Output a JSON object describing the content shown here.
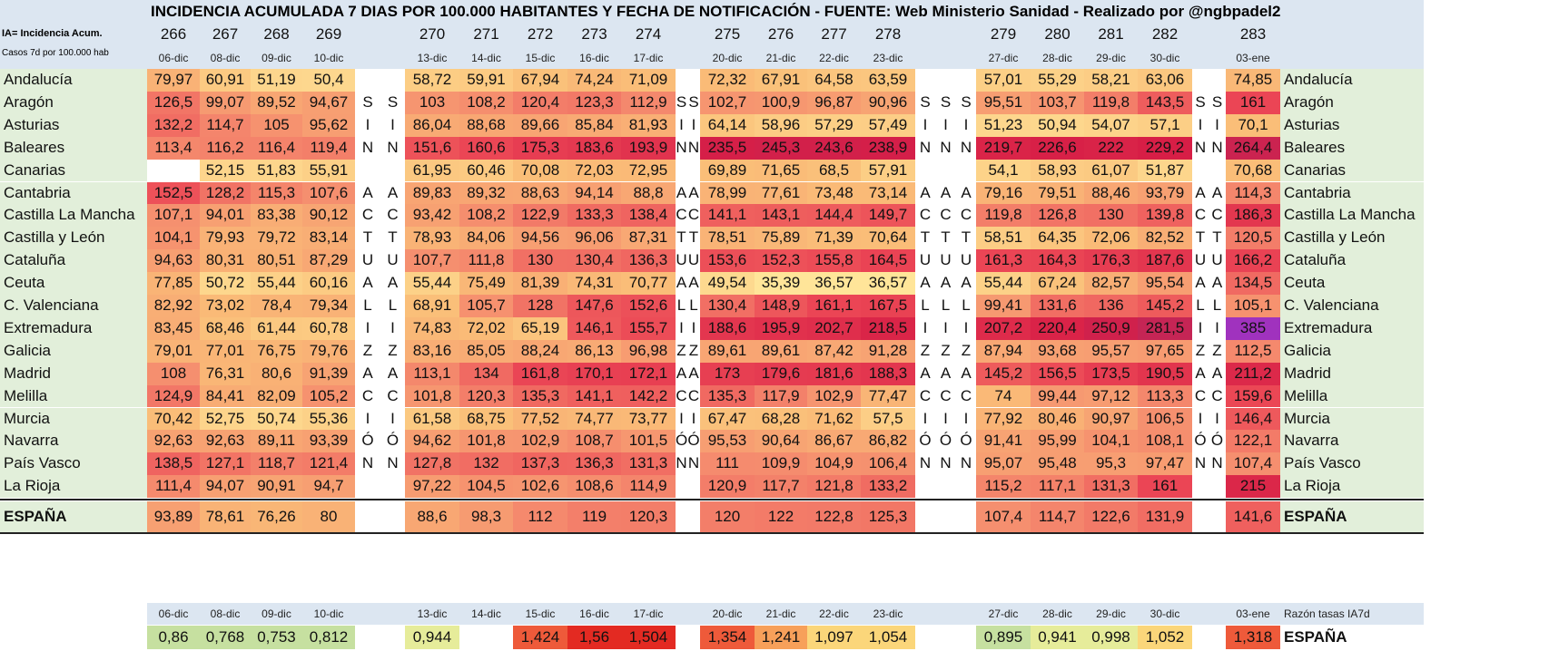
{
  "title": "INCIDENCIA ACUMULADA 7 DIAS POR 100.000 HABITANTES Y FECHA DE NOTIFICACIÓN - FUENTE: Web Ministerio Sanidad - Realizado por @ngbpadel2",
  "legend": {
    "line1": "IA= Incidencia Acum.",
    "line2": "Casos 7d  por 100.000 hab"
  },
  "day_numbers": [
    "266",
    "267",
    "268",
    "269",
    "270",
    "271",
    "272",
    "273",
    "274",
    "275",
    "276",
    "277",
    "278",
    "279",
    "280",
    "281",
    "282",
    "283"
  ],
  "dates": [
    "06-dic",
    "08-dic",
    "09-dic",
    "10-dic",
    "13-dic",
    "14-dic",
    "15-dic",
    "16-dic",
    "17-dic",
    "20-dic",
    "21-dic",
    "22-dic",
    "23-dic",
    "27-dic",
    "28-dic",
    "29-dic",
    "30-dic",
    "03-ene"
  ],
  "weekend_columns": [
    {
      "after": 4,
      "count": 2
    },
    {
      "after": 9,
      "count": 2
    },
    {
      "after": 13,
      "count": 3
    },
    {
      "after": 17,
      "count": 3
    }
  ],
  "rows": [
    {
      "region": "Andalucía",
      "weekend": "",
      "values": [
        "79,97",
        "60,91",
        "51,19",
        "50,4",
        "58,72",
        "59,91",
        "67,94",
        "74,24",
        "71,09",
        "72,32",
        "67,91",
        "64,58",
        "63,59",
        "57,01",
        "55,29",
        "58,21",
        "63,06",
        "74,85"
      ]
    },
    {
      "region": "Aragón",
      "weekend": "S",
      "values": [
        "126,5",
        "99,07",
        "89,52",
        "94,67",
        "103",
        "108,2",
        "120,4",
        "123,3",
        "112,9",
        "102,7",
        "100,9",
        "96,87",
        "90,96",
        "95,51",
        "103,7",
        "119,8",
        "143,5",
        "161"
      ]
    },
    {
      "region": "Asturias",
      "weekend": "I",
      "values": [
        "132,2",
        "114,7",
        "105",
        "95,62",
        "86,04",
        "88,68",
        "89,66",
        "85,84",
        "81,93",
        "64,14",
        "58,96",
        "57,29",
        "57,49",
        "51,23",
        "50,94",
        "54,07",
        "57,1",
        "70,1"
      ]
    },
    {
      "region": "Baleares",
      "weekend": "N",
      "values": [
        "113,4",
        "116,2",
        "116,4",
        "119,4",
        "151,6",
        "160,6",
        "175,3",
        "183,6",
        "193,9",
        "235,5",
        "245,3",
        "243,6",
        "238,9",
        "219,7",
        "226,6",
        "222",
        "229,2",
        "264,4"
      ]
    },
    {
      "region": "Canarias",
      "weekend": "",
      "values": [
        "",
        "52,15",
        "51,83",
        "55,91",
        "61,95",
        "60,46",
        "70,08",
        "72,03",
        "72,95",
        "69,89",
        "71,65",
        "68,5",
        "57,91",
        "54,1",
        "58,93",
        "61,07",
        "51,87",
        "70,68"
      ]
    },
    {
      "region": "Cantabria",
      "weekend": "A",
      "values": [
        "152,5",
        "128,2",
        "115,3",
        "107,6",
        "89,83",
        "89,32",
        "88,63",
        "94,14",
        "88,8",
        "78,99",
        "77,61",
        "73,48",
        "73,14",
        "79,16",
        "79,51",
        "88,46",
        "93,79",
        "114,3"
      ]
    },
    {
      "region": "Castilla La Mancha",
      "weekend": "C",
      "values": [
        "107,1",
        "94,01",
        "83,38",
        "90,12",
        "93,42",
        "108,2",
        "122,9",
        "133,3",
        "138,4",
        "141,1",
        "143,1",
        "144,4",
        "149,7",
        "119,8",
        "126,8",
        "130",
        "139,8",
        "186,3"
      ]
    },
    {
      "region": "Castilla y León",
      "weekend": "T",
      "values": [
        "104,1",
        "79,93",
        "79,72",
        "83,14",
        "78,93",
        "84,06",
        "94,56",
        "96,06",
        "87,31",
        "78,51",
        "75,89",
        "71,39",
        "70,64",
        "58,51",
        "64,35",
        "72,06",
        "82,52",
        "120,5"
      ]
    },
    {
      "region": "Cataluña",
      "weekend": "U",
      "values": [
        "94,63",
        "80,31",
        "80,51",
        "87,29",
        "107,7",
        "111,8",
        "130",
        "130,4",
        "136,3",
        "153,6",
        "152,3",
        "155,8",
        "164,5",
        "161,3",
        "164,3",
        "176,3",
        "187,6",
        "166,2"
      ]
    },
    {
      "region": "Ceuta",
      "weekend": "A",
      "values": [
        "77,85",
        "50,72",
        "55,44",
        "60,16",
        "55,44",
        "75,49",
        "81,39",
        "74,31",
        "70,77",
        "49,54",
        "35,39",
        "36,57",
        "36,57",
        "55,44",
        "67,24",
        "82,57",
        "95,54",
        "134,5"
      ]
    },
    {
      "region": "C. Valenciana",
      "weekend": "L",
      "values": [
        "82,92",
        "73,02",
        "78,4",
        "79,34",
        "68,91",
        "105,7",
        "128",
        "147,6",
        "152,6",
        "130,4",
        "148,9",
        "161,1",
        "167,5",
        "99,41",
        "131,6",
        "136",
        "145,2",
        "105,1"
      ]
    },
    {
      "region": "Extremadura",
      "weekend": "I",
      "values": [
        "83,45",
        "68,46",
        "61,44",
        "60,78",
        "74,83",
        "72,02",
        "65,19",
        "146,1",
        "155,7",
        "188,6",
        "195,9",
        "202,7",
        "218,5",
        "207,2",
        "220,4",
        "250,9",
        "281,5",
        "385"
      ]
    },
    {
      "region": "Galicia",
      "weekend": "Z",
      "values": [
        "79,01",
        "77,01",
        "76,75",
        "79,76",
        "83,16",
        "85,05",
        "88,24",
        "86,13",
        "96,98",
        "89,61",
        "89,61",
        "87,42",
        "91,28",
        "87,94",
        "93,68",
        "95,57",
        "97,65",
        "112,5"
      ]
    },
    {
      "region": "Madrid",
      "weekend": "A",
      "values": [
        "108",
        "76,31",
        "80,6",
        "91,39",
        "113,1",
        "134",
        "161,8",
        "170,1",
        "172,1",
        "173",
        "179,6",
        "181,6",
        "188,3",
        "145,2",
        "156,5",
        "173,5",
        "190,5",
        "211,2"
      ]
    },
    {
      "region": "Melilla",
      "weekend": "C",
      "values": [
        "124,9",
        "84,41",
        "82,09",
        "105,2",
        "101,8",
        "120,3",
        "135,3",
        "141,1",
        "142,2",
        "135,3",
        "117,9",
        "102,9",
        "77,47",
        "74",
        "99,44",
        "97,12",
        "113,3",
        "159,6"
      ]
    },
    {
      "region": "Murcia",
      "weekend": "I",
      "values": [
        "70,42",
        "52,75",
        "50,74",
        "55,36",
        "61,58",
        "68,75",
        "77,52",
        "74,77",
        "73,77",
        "67,47",
        "68,28",
        "71,62",
        "57,5",
        "77,92",
        "80,46",
        "90,97",
        "106,5",
        "146,4"
      ]
    },
    {
      "region": "Navarra",
      "weekend": "Ó",
      "values": [
        "92,63",
        "92,63",
        "89,11",
        "93,39",
        "94,62",
        "101,8",
        "102,9",
        "108,7",
        "101,5",
        "95,53",
        "90,64",
        "86,67",
        "86,82",
        "91,41",
        "95,99",
        "104,1",
        "108,1",
        "122,1"
      ]
    },
    {
      "region": "País Vasco",
      "weekend": "N",
      "values": [
        "138,5",
        "127,1",
        "118,7",
        "121,4",
        "127,8",
        "132",
        "137,3",
        "136,3",
        "131,3",
        "111",
        "109,9",
        "104,9",
        "106,4",
        "95,07",
        "95,48",
        "95,3",
        "97,47",
        "107,4"
      ]
    },
    {
      "region": "La Rioja",
      "weekend": "",
      "values": [
        "111,4",
        "94,07",
        "90,91",
        "94,7",
        "97,22",
        "104,5",
        "102,6",
        "108,6",
        "114,9",
        "120,9",
        "117,7",
        "121,8",
        "133,2",
        "115,2",
        "117,1",
        "131,3",
        "161",
        "215"
      ]
    }
  ],
  "total": {
    "region": "ESPAÑA",
    "values": [
      "93,89",
      "78,61",
      "76,26",
      "80",
      "88,6",
      "98,3",
      "112",
      "119",
      "120,3",
      "120",
      "122",
      "122,8",
      "125,3",
      "107,4",
      "114,7",
      "122,6",
      "131,9",
      "141,6"
    ]
  },
  "ratio": {
    "header_label": "Razón tasas IA7d",
    "region": "ESPAÑA",
    "values": [
      "0,86",
      "0,768",
      "0,753",
      "0,812",
      "0,944",
      "",
      "1,424",
      "1,56",
      "1,504",
      "1,354",
      "1,241",
      "1,097",
      "1,054",
      "0,895",
      "0,941",
      "0,998",
      "1,052",
      "1,318"
    ]
  }
}
